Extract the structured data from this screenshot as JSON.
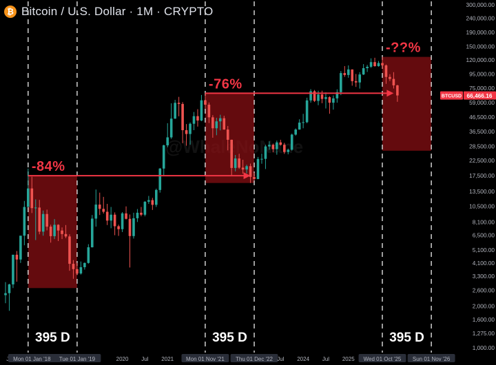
{
  "header": {
    "coin_icon": "bitcoin-icon",
    "title": "Bitcoin / U.S. Dollar · 1M · CRYPTO"
  },
  "watermark": "@WhaleNoNane",
  "price_axis": {
    "scale": "log",
    "ticks": [
      {
        "value": 300000,
        "label": "300,000.00"
      },
      {
        "value": 240000,
        "label": "240,000.00"
      },
      {
        "value": 190000,
        "label": "190,000.00"
      },
      {
        "value": 150000,
        "label": "150,000.00"
      },
      {
        "value": 120000,
        "label": "120,000.00"
      },
      {
        "value": 95000,
        "label": "95,000.00"
      },
      {
        "value": 75000,
        "label": "75,000.00"
      },
      {
        "value": 59000,
        "label": "59,000.00"
      },
      {
        "value": 46500,
        "label": "46,500.00"
      },
      {
        "value": 36500,
        "label": "36,500.00"
      },
      {
        "value": 28500,
        "label": "28,500.00"
      },
      {
        "value": 22500,
        "label": "22,500.00"
      },
      {
        "value": 17500,
        "label": "17,500.00"
      },
      {
        "value": 13500,
        "label": "13,500.00"
      },
      {
        "value": 10500,
        "label": "10,500.00"
      },
      {
        "value": 8100,
        "label": "8,100.00"
      },
      {
        "value": 6500,
        "label": "6,500.00"
      },
      {
        "value": 5100,
        "label": "5,100.00"
      },
      {
        "value": 4100,
        "label": "4,100.00"
      },
      {
        "value": 3300,
        "label": "3,300.00"
      },
      {
        "value": 2600,
        "label": "2,600.00"
      },
      {
        "value": 2000,
        "label": "2,000.00"
      },
      {
        "value": 1600,
        "label": "1,600.00"
      },
      {
        "value": 1275,
        "label": "1,275.00"
      },
      {
        "value": 1000,
        "label": "1,000.00"
      }
    ],
    "current": {
      "symbol": "BTCUSD",
      "value": 66466.16,
      "label": "66,466.16",
      "color": "#f23645"
    }
  },
  "time_axis": {
    "labels": [
      {
        "label": "Ju",
        "date": "2017-07-01"
      },
      {
        "label": "Mon 01 Jan '18",
        "date": "2018-01-01",
        "boxed": true
      },
      {
        "label": "Tue 01 Jan '19",
        "date": "2019-01-01",
        "boxed": true
      },
      {
        "label": "2020",
        "date": "2020-01-01"
      },
      {
        "label": "Jul",
        "date": "2020-07-01"
      },
      {
        "label": "2021",
        "date": "2021-01-01"
      },
      {
        "label": "Mon 01 Nov '21",
        "date": "2021-11-01",
        "boxed": true
      },
      {
        "label": "Thu 01 Dec '22",
        "date": "2022-12-01",
        "boxed": true
      },
      {
        "label": "Jul",
        "date": "2023-07-01"
      },
      {
        "label": "2024",
        "date": "2024-01-01"
      },
      {
        "label": "Jul",
        "date": "2024-07-01"
      },
      {
        "label": "2025",
        "date": "2025-01-01"
      },
      {
        "label": "Wed 01 Oct '25",
        "date": "2025-10-01",
        "boxed": true
      },
      {
        "label": "Sun 01 Nov '26",
        "date": "2026-11-01",
        "boxed": true
      }
    ]
  },
  "chart_data": {
    "type": "candlestick",
    "interval": "1M",
    "y_scale": "log",
    "up_color": "#26a69a",
    "down_color": "#ef5350",
    "candles": [
      {
        "date": "2017-06-01",
        "o": 2400,
        "h": 2980,
        "l": 2100,
        "c": 2480
      },
      {
        "date": "2017-07-01",
        "o": 2480,
        "h": 2900,
        "l": 1850,
        "c": 2870
      },
      {
        "date": "2017-08-01",
        "o": 2870,
        "h": 4700,
        "l": 2700,
        "c": 4700
      },
      {
        "date": "2017-09-01",
        "o": 4700,
        "h": 5000,
        "l": 3000,
        "c": 4340
      },
      {
        "date": "2017-10-01",
        "o": 4340,
        "h": 6450,
        "l": 4100,
        "c": 6450
      },
      {
        "date": "2017-11-01",
        "o": 6450,
        "h": 11500,
        "l": 5500,
        "c": 10400
      },
      {
        "date": "2017-12-01",
        "o": 10400,
        "h": 19700,
        "l": 10400,
        "c": 14150
      },
      {
        "date": "2018-01-01",
        "o": 14150,
        "h": 17200,
        "l": 9400,
        "c": 10200
      },
      {
        "date": "2018-02-01",
        "o": 10200,
        "h": 11800,
        "l": 6000,
        "c": 10300
      },
      {
        "date": "2018-03-01",
        "o": 10300,
        "h": 11700,
        "l": 6600,
        "c": 6900
      },
      {
        "date": "2018-04-01",
        "o": 6900,
        "h": 9800,
        "l": 6450,
        "c": 9250
      },
      {
        "date": "2018-05-01",
        "o": 9250,
        "h": 9950,
        "l": 7050,
        "c": 7500
      },
      {
        "date": "2018-06-01",
        "o": 7500,
        "h": 7750,
        "l": 5750,
        "c": 6400
      },
      {
        "date": "2018-07-01",
        "o": 6400,
        "h": 8500,
        "l": 6100,
        "c": 7730
      },
      {
        "date": "2018-08-01",
        "o": 7730,
        "h": 7800,
        "l": 5900,
        "c": 7030
      },
      {
        "date": "2018-09-01",
        "o": 7030,
        "h": 7400,
        "l": 6100,
        "c": 6630
      },
      {
        "date": "2018-10-01",
        "o": 6630,
        "h": 7700,
        "l": 6200,
        "c": 6370
      },
      {
        "date": "2018-11-01",
        "o": 6370,
        "h": 6600,
        "l": 3600,
        "c": 4040
      },
      {
        "date": "2018-12-01",
        "o": 4040,
        "h": 4300,
        "l": 3150,
        "c": 3700
      },
      {
        "date": "2019-01-01",
        "o": 3700,
        "h": 4100,
        "l": 3350,
        "c": 3440
      },
      {
        "date": "2019-02-01",
        "o": 3440,
        "h": 4200,
        "l": 3380,
        "c": 3820
      },
      {
        "date": "2019-03-01",
        "o": 3820,
        "h": 4130,
        "l": 3670,
        "c": 4100
      },
      {
        "date": "2019-04-01",
        "o": 4100,
        "h": 5600,
        "l": 4050,
        "c": 5320
      },
      {
        "date": "2019-05-01",
        "o": 5320,
        "h": 9100,
        "l": 5300,
        "c": 8570
      },
      {
        "date": "2019-06-01",
        "o": 8570,
        "h": 13900,
        "l": 7500,
        "c": 10820
      },
      {
        "date": "2019-07-01",
        "o": 10820,
        "h": 13200,
        "l": 9100,
        "c": 10080
      },
      {
        "date": "2019-08-01",
        "o": 10080,
        "h": 12300,
        "l": 9320,
        "c": 9600
      },
      {
        "date": "2019-09-01",
        "o": 9600,
        "h": 10950,
        "l": 7700,
        "c": 8290
      },
      {
        "date": "2019-10-01",
        "o": 8290,
        "h": 10400,
        "l": 7300,
        "c": 9150
      },
      {
        "date": "2019-11-01",
        "o": 9150,
        "h": 9500,
        "l": 6500,
        "c": 7550
      },
      {
        "date": "2019-12-01",
        "o": 7550,
        "h": 7750,
        "l": 6430,
        "c": 7190
      },
      {
        "date": "2020-01-01",
        "o": 7190,
        "h": 9550,
        "l": 6850,
        "c": 9350
      },
      {
        "date": "2020-02-01",
        "o": 9350,
        "h": 10500,
        "l": 8450,
        "c": 8540
      },
      {
        "date": "2020-03-01",
        "o": 8540,
        "h": 9180,
        "l": 3800,
        "c": 6410
      },
      {
        "date": "2020-04-01",
        "o": 6410,
        "h": 9450,
        "l": 6150,
        "c": 8620
      },
      {
        "date": "2020-05-01",
        "o": 8620,
        "h": 10050,
        "l": 8100,
        "c": 9450
      },
      {
        "date": "2020-06-01",
        "o": 9450,
        "h": 10400,
        "l": 8900,
        "c": 9140
      },
      {
        "date": "2020-07-01",
        "o": 9140,
        "h": 11450,
        "l": 8900,
        "c": 11350
      },
      {
        "date": "2020-08-01",
        "o": 11350,
        "h": 12500,
        "l": 10950,
        "c": 11650
      },
      {
        "date": "2020-09-01",
        "o": 11650,
        "h": 12100,
        "l": 9900,
        "c": 10780
      },
      {
        "date": "2020-10-01",
        "o": 10780,
        "h": 14100,
        "l": 10400,
        "c": 13800
      },
      {
        "date": "2020-11-01",
        "o": 13800,
        "h": 19900,
        "l": 13200,
        "c": 19700
      },
      {
        "date": "2020-12-01",
        "o": 19700,
        "h": 29300,
        "l": 17600,
        "c": 29000
      },
      {
        "date": "2021-01-01",
        "o": 29000,
        "h": 41900,
        "l": 28100,
        "c": 33100
      },
      {
        "date": "2021-02-01",
        "o": 33100,
        "h": 58300,
        "l": 32300,
        "c": 45200
      },
      {
        "date": "2021-03-01",
        "o": 45200,
        "h": 61800,
        "l": 45000,
        "c": 58800
      },
      {
        "date": "2021-04-01",
        "o": 58800,
        "h": 64900,
        "l": 47000,
        "c": 57700
      },
      {
        "date": "2021-05-01",
        "o": 57700,
        "h": 59500,
        "l": 30000,
        "c": 37300
      },
      {
        "date": "2021-06-01",
        "o": 37300,
        "h": 41300,
        "l": 28800,
        "c": 35000
      },
      {
        "date": "2021-07-01",
        "o": 35000,
        "h": 42400,
        "l": 29300,
        "c": 41500
      },
      {
        "date": "2021-08-01",
        "o": 41500,
        "h": 50500,
        "l": 37300,
        "c": 47100
      },
      {
        "date": "2021-09-01",
        "o": 47100,
        "h": 52900,
        "l": 39600,
        "c": 43800
      },
      {
        "date": "2021-10-01",
        "o": 43800,
        "h": 67000,
        "l": 43300,
        "c": 61300
      },
      {
        "date": "2021-11-01",
        "o": 61300,
        "h": 69000,
        "l": 53300,
        "c": 57000
      },
      {
        "date": "2021-12-01",
        "o": 57000,
        "h": 59100,
        "l": 42000,
        "c": 46200
      },
      {
        "date": "2022-01-01",
        "o": 46200,
        "h": 47900,
        "l": 32900,
        "c": 38500
      },
      {
        "date": "2022-02-01",
        "o": 38500,
        "h": 45800,
        "l": 34300,
        "c": 43200
      },
      {
        "date": "2022-03-01",
        "o": 43200,
        "h": 48200,
        "l": 37200,
        "c": 45500
      },
      {
        "date": "2022-04-01",
        "o": 45500,
        "h": 47400,
        "l": 37600,
        "c": 37700
      },
      {
        "date": "2022-05-01",
        "o": 37700,
        "h": 40000,
        "l": 26700,
        "c": 31800
      },
      {
        "date": "2022-06-01",
        "o": 31800,
        "h": 31900,
        "l": 17600,
        "c": 19900
      },
      {
        "date": "2022-07-01",
        "o": 19900,
        "h": 24700,
        "l": 18800,
        "c": 23300
      },
      {
        "date": "2022-08-01",
        "o": 23300,
        "h": 25200,
        "l": 19600,
        "c": 20000
      },
      {
        "date": "2022-09-01",
        "o": 20000,
        "h": 22800,
        "l": 18100,
        "c": 19400
      },
      {
        "date": "2022-10-01",
        "o": 19400,
        "h": 21000,
        "l": 18200,
        "c": 20500
      },
      {
        "date": "2022-11-01",
        "o": 20500,
        "h": 21400,
        "l": 15500,
        "c": 17150
      },
      {
        "date": "2022-12-01",
        "o": 17150,
        "h": 18400,
        "l": 16250,
        "c": 16550
      },
      {
        "date": "2023-01-01",
        "o": 16550,
        "h": 23900,
        "l": 16500,
        "c": 23100
      },
      {
        "date": "2023-02-01",
        "o": 23100,
        "h": 25250,
        "l": 21350,
        "c": 23150
      },
      {
        "date": "2023-03-01",
        "o": 23150,
        "h": 29200,
        "l": 19550,
        "c": 28450
      },
      {
        "date": "2023-04-01",
        "o": 28450,
        "h": 31000,
        "l": 26950,
        "c": 29250
      },
      {
        "date": "2023-05-01",
        "o": 29250,
        "h": 29850,
        "l": 25800,
        "c": 27200
      },
      {
        "date": "2023-06-01",
        "o": 27200,
        "h": 31400,
        "l": 24800,
        "c": 30450
      },
      {
        "date": "2023-07-01",
        "o": 30450,
        "h": 31800,
        "l": 28850,
        "c": 29250
      },
      {
        "date": "2023-08-01",
        "o": 29250,
        "h": 30200,
        "l": 25150,
        "c": 25950
      },
      {
        "date": "2023-09-01",
        "o": 25950,
        "h": 27450,
        "l": 24950,
        "c": 26950
      },
      {
        "date": "2023-10-01",
        "o": 26950,
        "h": 35200,
        "l": 26550,
        "c": 34650
      },
      {
        "date": "2023-11-01",
        "o": 34650,
        "h": 38400,
        "l": 34100,
        "c": 37700
      },
      {
        "date": "2023-12-01",
        "o": 37700,
        "h": 44700,
        "l": 37600,
        "c": 42300
      },
      {
        "date": "2024-01-01",
        "o": 42300,
        "h": 48950,
        "l": 38500,
        "c": 42600
      },
      {
        "date": "2024-02-01",
        "o": 42600,
        "h": 64000,
        "l": 41900,
        "c": 61200
      },
      {
        "date": "2024-03-01",
        "o": 61200,
        "h": 73800,
        "l": 59000,
        "c": 71300
      },
      {
        "date": "2024-04-01",
        "o": 71300,
        "h": 72800,
        "l": 59600,
        "c": 60700
      },
      {
        "date": "2024-05-01",
        "o": 60700,
        "h": 71900,
        "l": 56500,
        "c": 67500
      },
      {
        "date": "2024-06-01",
        "o": 67500,
        "h": 71900,
        "l": 58400,
        "c": 62700
      },
      {
        "date": "2024-07-01",
        "o": 62700,
        "h": 70000,
        "l": 53500,
        "c": 64600
      },
      {
        "date": "2024-08-01",
        "o": 64600,
        "h": 65600,
        "l": 49000,
        "c": 58900
      },
      {
        "date": "2024-09-01",
        "o": 58900,
        "h": 66500,
        "l": 52500,
        "c": 63300
      },
      {
        "date": "2024-10-01",
        "o": 63300,
        "h": 73600,
        "l": 58900,
        "c": 70200
      },
      {
        "date": "2024-11-01",
        "o": 70200,
        "h": 99800,
        "l": 66800,
        "c": 96400
      },
      {
        "date": "2024-12-01",
        "o": 96400,
        "h": 108300,
        "l": 90500,
        "c": 93400
      },
      {
        "date": "2025-01-01",
        "o": 93400,
        "h": 109500,
        "l": 89200,
        "c": 102400
      },
      {
        "date": "2025-02-01",
        "o": 102400,
        "h": 102500,
        "l": 78200,
        "c": 84300
      },
      {
        "date": "2025-03-01",
        "o": 84300,
        "h": 95000,
        "l": 76600,
        "c": 82500
      },
      {
        "date": "2025-04-01",
        "o": 82500,
        "h": 97900,
        "l": 74500,
        "c": 94200
      },
      {
        "date": "2025-05-01",
        "o": 94200,
        "h": 111900,
        "l": 93300,
        "c": 104600
      },
      {
        "date": "2025-06-01",
        "o": 104600,
        "h": 110500,
        "l": 98200,
        "c": 107100
      },
      {
        "date": "2025-07-01",
        "o": 107100,
        "h": 123200,
        "l": 105100,
        "c": 115700
      },
      {
        "date": "2025-08-01",
        "o": 115700,
        "h": 124400,
        "l": 107300,
        "c": 108200
      },
      {
        "date": "2025-09-01",
        "o": 108200,
        "h": 117900,
        "l": 107200,
        "c": 114000
      },
      {
        "date": "2025-10-01",
        "o": 114000,
        "h": 126200,
        "l": 103500,
        "c": 109600
      },
      {
        "date": "2025-11-01",
        "o": 109600,
        "h": 111200,
        "l": 80600,
        "c": 90400
      },
      {
        "date": "2025-12-01",
        "o": 90400,
        "h": 94600,
        "l": 84400,
        "c": 87500
      },
      {
        "date": "2026-01-01",
        "o": 87500,
        "h": 97900,
        "l": 74600,
        "c": 78600
      },
      {
        "date": "2026-02-01",
        "o": 78600,
        "h": 79300,
        "l": 59800,
        "c": 66466.16
      }
    ],
    "annotations": {
      "vertical_lines": [
        "2017-12-01",
        "2019-01-01",
        "2021-11-01",
        "2022-12-01",
        "2025-10-01",
        "2026-11-01"
      ],
      "boxes": [
        {
          "from": "2017-12-01",
          "to": "2019-01-01",
          "top": 17500,
          "bottom": 2700,
          "label": "-84%",
          "days_label": "395 D"
        },
        {
          "from": "2021-11-01",
          "to": "2022-12-01",
          "top": 69000,
          "bottom": 15500,
          "label": "-76%",
          "days_label": "395 D"
        },
        {
          "from": "2025-10-01",
          "to": "2026-11-01",
          "top": 126200,
          "bottom": 26500,
          "label": "-??%",
          "days_label": "395 D"
        }
      ],
      "arrows": [
        {
          "from": "2017-12-01",
          "to": "2022-11-01",
          "price": 17500
        },
        {
          "from": "2021-11-01",
          "to": "2026-01-01",
          "price": 69000
        }
      ],
      "box_color": "#8b0f14",
      "label_color": "#f23645",
      "arrow_color": "#f23645"
    }
  }
}
